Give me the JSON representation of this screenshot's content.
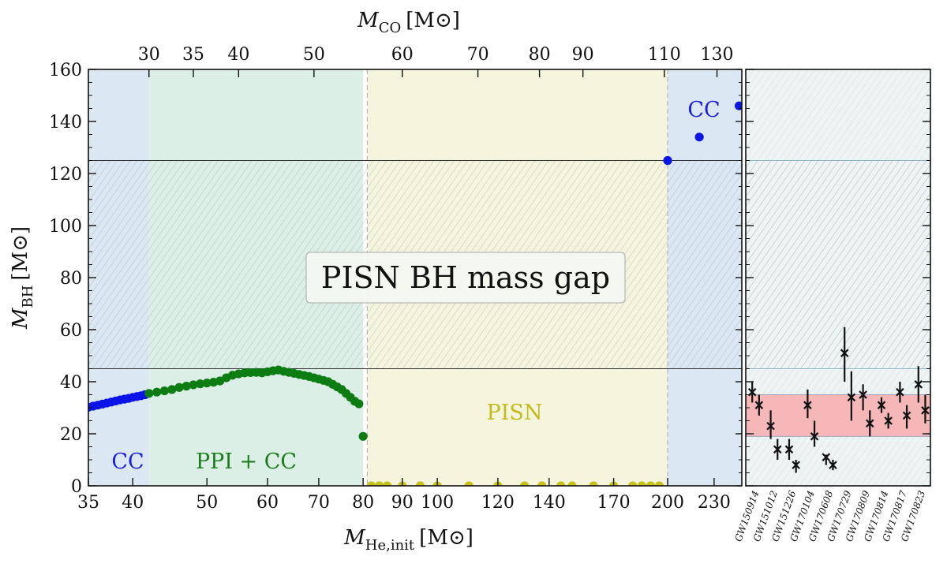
{
  "chart_data": [
    {
      "type": "scatter",
      "xscale": "log",
      "xlim": [
        35,
        250
      ],
      "ylim": [
        0,
        160
      ],
      "xlabel_var": "M",
      "xlabel_sub": "He,init",
      "xlabel_unit": "[M⊙]",
      "top_axis": {
        "label_var": "M",
        "label_sub": "CO",
        "label_unit": "[M⊙]",
        "ticks": [
          {
            "label": "30",
            "he_mass": 42
          },
          {
            "label": "35",
            "he_mass": 48
          },
          {
            "label": "40",
            "he_mass": 55
          },
          {
            "label": "50",
            "he_mass": 69
          },
          {
            "label": "60",
            "he_mass": 90
          },
          {
            "label": "70",
            "he_mass": 113
          },
          {
            "label": "80",
            "he_mass": 136
          },
          {
            "label": "90",
            "he_mass": 155
          },
          {
            "label": "110",
            "he_mass": 198
          },
          {
            "label": "130",
            "he_mass": 232
          }
        ]
      },
      "ylabel_var": "M",
      "ylabel_sub": "BH",
      "ylabel_unit": "[M⊙]",
      "xticks": [
        35,
        40,
        50,
        60,
        70,
        80,
        90,
        100,
        120,
        140,
        170,
        200,
        230
      ],
      "yticks": [
        0,
        20,
        40,
        60,
        80,
        100,
        120,
        140,
        160
      ],
      "regions": [
        {
          "name": "CC",
          "from": 35,
          "to": 42,
          "color": "#dce7f4"
        },
        {
          "name": "PPI + CC",
          "from": 42,
          "to": 80,
          "color": "#dcefe6"
        },
        {
          "name": "PISN",
          "from": 81,
          "to": 200,
          "color": "#f5f4dc"
        },
        {
          "name": "CC",
          "from": 200,
          "to": 250,
          "color": "#dce7f4"
        }
      ],
      "mass_gap": {
        "label": "PISN BH mass gap",
        "ymin": 45,
        "ymax": 125
      },
      "labels": {
        "cc_left": "CC",
        "ppi": "PPI + CC",
        "pisn": "PISN",
        "cc_right": "CC"
      },
      "series": [
        {
          "kind": "cc",
          "color": "#0a14e6",
          "x": [
            35,
            35.5,
            36,
            36.5,
            37,
            37.5,
            38,
            38.5,
            39,
            39.5,
            40,
            40.5,
            41,
            41.5
          ],
          "y": [
            30.2,
            30.6,
            31.0,
            31.4,
            31.8,
            32.2,
            32.6,
            33.0,
            33.3,
            33.6,
            34.0,
            34.3,
            34.6,
            35.0
          ]
        },
        {
          "kind": "ppi",
          "color": "#0d7d13",
          "x": [
            42,
            43,
            44,
            45,
            46,
            47,
            48,
            49,
            50,
            51,
            52,
            53,
            54,
            55,
            56,
            57,
            58,
            59,
            60,
            61,
            62,
            63,
            64,
            65,
            66,
            67,
            68,
            69,
            70,
            71,
            72,
            73,
            74,
            75,
            76,
            77,
            78,
            79
          ],
          "y": [
            35.5,
            36.0,
            36.5,
            37.0,
            37.8,
            38.3,
            38.8,
            39.2,
            39.5,
            39.8,
            40.3,
            41.5,
            42.5,
            43.0,
            43.4,
            43.5,
            43.6,
            43.4,
            43.8,
            44.2,
            44.5,
            44.0,
            43.6,
            43.2,
            42.8,
            42.4,
            42.0,
            41.5,
            41.0,
            40.5,
            40.0,
            39.0,
            38.0,
            37.0,
            35.5,
            34.0,
            32.5,
            31.5
          ]
        },
        {
          "kind": "ppi-outlier",
          "color": "#0d7d13",
          "x": [
            80
          ],
          "y": [
            19
          ]
        },
        {
          "kind": "pisn",
          "color": "#c7c21a",
          "x": [
            82,
            84,
            86,
            90,
            95,
            100,
            110,
            120,
            130,
            137,
            145,
            150,
            160,
            170,
            180,
            185,
            190,
            195
          ],
          "y": [
            0,
            0,
            0,
            0,
            0,
            0,
            0,
            0,
            0,
            0,
            0,
            0,
            0,
            0,
            0,
            0,
            0,
            0
          ]
        },
        {
          "kind": "cc-high",
          "color": "#0a14e6",
          "x": [
            200,
            220,
            248
          ],
          "y": [
            125,
            134,
            146
          ]
        }
      ]
    },
    {
      "type": "errorbar",
      "ylim": [
        0,
        160
      ],
      "band": {
        "ymin": 19,
        "ymax": 35,
        "color": "#f5b7b7"
      },
      "mass_gap": {
        "ymin": 45,
        "ymax": 125
      },
      "events": [
        "GW150914",
        "GW151012",
        "GW151226",
        "GW170104",
        "GW170608",
        "GW170729",
        "GW170809",
        "GW170814",
        "GW170817",
        "GW170823"
      ],
      "points": [
        {
          "event": "GW150914",
          "value": 36,
          "low": 32,
          "high": 40
        },
        {
          "event": "GW150914",
          "value": 31,
          "low": 27,
          "high": 35
        },
        {
          "event": "GW151012",
          "value": 23,
          "low": 18,
          "high": 29
        },
        {
          "event": "GW151012",
          "value": 14,
          "low": 10,
          "high": 18
        },
        {
          "event": "GW151226",
          "value": 14,
          "low": 10,
          "high": 18
        },
        {
          "event": "GW151226",
          "value": 8,
          "low": 5,
          "high": 10
        },
        {
          "event": "GW170104",
          "value": 31,
          "low": 26,
          "high": 37
        },
        {
          "event": "GW170104",
          "value": 19,
          "low": 15,
          "high": 25
        },
        {
          "event": "GW170608",
          "value": 11,
          "low": 8,
          "high": 12
        },
        {
          "event": "GW170608",
          "value": 8,
          "low": 6,
          "high": 10
        },
        {
          "event": "GW170729",
          "value": 51,
          "low": 40,
          "high": 61
        },
        {
          "event": "GW170729",
          "value": 34,
          "low": 25,
          "high": 44
        },
        {
          "event": "GW170809",
          "value": 35,
          "low": 29,
          "high": 39
        },
        {
          "event": "GW170809",
          "value": 24,
          "low": 19,
          "high": 29
        },
        {
          "event": "GW170814",
          "value": 31,
          "low": 28,
          "high": 34
        },
        {
          "event": "GW170814",
          "value": 25,
          "low": 22,
          "high": 28
        },
        {
          "event": "GW170817",
          "value": 36,
          "low": 32,
          "high": 40
        },
        {
          "event": "GW170817",
          "value": 27,
          "low": 22,
          "high": 31
        },
        {
          "event": "GW170823",
          "value": 39,
          "low": 32,
          "high": 46
        },
        {
          "event": "GW170823",
          "value": 29,
          "low": 24,
          "high": 35
        }
      ]
    }
  ]
}
